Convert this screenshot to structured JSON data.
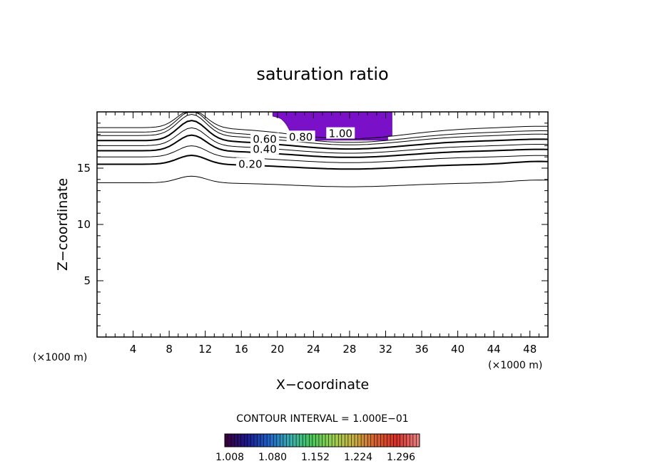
{
  "chart_data": {
    "type": "contour",
    "title": "saturation ratio",
    "xlabel": "X−coordinate",
    "ylabel": "Z−coordinate",
    "x_unit_left": "(×1000 m)",
    "x_unit_right": "(×1000 m)",
    "xlim": [
      0,
      50
    ],
    "ylim": [
      0,
      20
    ],
    "x_ticks": [
      4,
      8,
      12,
      16,
      20,
      24,
      28,
      32,
      36,
      40,
      44,
      48
    ],
    "x_tick_labels": [
      "4",
      "8",
      "12",
      "16",
      "20",
      "24",
      "28",
      "32",
      "36",
      "40",
      "44",
      "48"
    ],
    "y_ticks": [
      5,
      10,
      15
    ],
    "y_tick_labels": [
      "5",
      "10",
      "15"
    ],
    "contour_interval_text": "CONTOUR INTERVAL = 1.000E−01",
    "contour_labels": [
      {
        "text": "0.20",
        "x": 17,
        "z": 15.3
      },
      {
        "text": "0.40",
        "x": 18.6,
        "z": 16.6
      },
      {
        "text": "0.60",
        "x": 18.6,
        "z": 17.5
      },
      {
        "text": "0.80",
        "x": 22.6,
        "z": 17.7
      },
      {
        "text": "1.00",
        "x": 27.0,
        "z": 18.0
      }
    ],
    "shaded_region": {
      "name": "saturation > 1.00",
      "color": "#7a10c8",
      "x_range": [
        19.5,
        32.7
      ],
      "z_range": [
        18.0,
        20.0
      ]
    },
    "colorbar": {
      "ticks": [
        "1.008",
        "1.080",
        "1.152",
        "1.224",
        "1.296"
      ],
      "colors": [
        "#3a003f",
        "#1a1a90",
        "#1e62c8",
        "#3ab0b0",
        "#48c85a",
        "#9ad050",
        "#c8b040",
        "#d86030",
        "#d83028",
        "#e88080"
      ]
    }
  }
}
